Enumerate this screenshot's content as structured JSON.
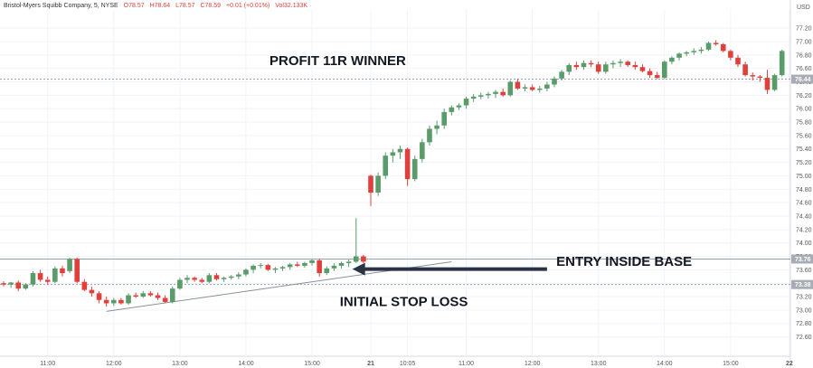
{
  "legend": {
    "symbol": "Bristol-Myers Squibb Company, 5, NYSE",
    "open": "O78.57",
    "high": "H78.64",
    "low": "L78.57",
    "close": "C78.59",
    "change": "+0.01 (+0.01%)",
    "volume": "Vol32.133K"
  },
  "colors": {
    "up": "#5a9b6a",
    "down": "#e0403c",
    "grid": "#f0f3fa",
    "axis_text": "#555555",
    "annotation_text": "#131722",
    "arrow": "#2a3244",
    "level_line": "#9aa0ab"
  },
  "chart_data": {
    "type": "candlestick",
    "title": "",
    "currency_label": "USD",
    "ylim": [
      72.5,
      77.35
    ],
    "y_ticks": [
      "77.20",
      "77.00",
      "76.80",
      "76.60",
      "76.40",
      "76.20",
      "76.00",
      "75.80",
      "75.60",
      "75.40",
      "75.20",
      "75.00",
      "74.80",
      "74.60",
      "74.40",
      "74.20",
      "74.00",
      "73.80",
      "73.60",
      "73.40",
      "73.20",
      "73.00",
      "72.80",
      "72.60"
    ],
    "x_tick_labels": [
      "11:00",
      "12:00",
      "13:00",
      "14:00",
      "15:00",
      "21",
      "10:05",
      "11:00",
      "12:00",
      "13:00",
      "14:00",
      "15:00",
      "22"
    ],
    "x_tick_bar_index": [
      6,
      15,
      24,
      33,
      42,
      50,
      55,
      63,
      72,
      81,
      90,
      99,
      107
    ],
    "levels": [
      {
        "price": 76.44,
        "label": "76.44",
        "style": "dotted"
      },
      {
        "price": 73.76,
        "label": "73.76",
        "style": "solid"
      },
      {
        "price": 73.38,
        "label": "73.38",
        "style": "dotted"
      }
    ],
    "trendline": {
      "from": [
        14,
        72.98
      ],
      "to": [
        61,
        73.72
      ]
    },
    "annotations": [
      {
        "text": "PROFIT 11R WINNER",
        "bar": 45.5,
        "price": 76.65
      },
      {
        "text": "ENTRY INSIDE BASE",
        "bar": 84.5,
        "price": 73.66
      },
      {
        "text": "INITIAL STOP LOSS",
        "bar": 54.5,
        "price": 73.06
      }
    ],
    "arrow": {
      "from_bar": 74,
      "to_bar": 47.5,
      "price": 73.61
    },
    "candles": [
      [
        73.4,
        73.43,
        73.35,
        73.38
      ],
      [
        73.38,
        73.42,
        73.33,
        73.41
      ],
      [
        73.41,
        73.44,
        73.28,
        73.32
      ],
      [
        73.32,
        73.4,
        73.3,
        73.38
      ],
      [
        73.38,
        73.58,
        73.35,
        73.55
      ],
      [
        73.55,
        73.6,
        73.42,
        73.45
      ],
      [
        73.45,
        73.5,
        73.38,
        73.42
      ],
      [
        73.42,
        73.65,
        73.4,
        73.62
      ],
      [
        73.62,
        73.66,
        73.5,
        73.55
      ],
      [
        73.58,
        73.78,
        73.55,
        73.76
      ],
      [
        73.76,
        73.78,
        73.4,
        73.42
      ],
      [
        73.42,
        73.46,
        73.28,
        73.3
      ],
      [
        73.3,
        73.35,
        73.2,
        73.25
      ],
      [
        73.25,
        73.28,
        73.1,
        73.15
      ],
      [
        73.15,
        73.2,
        73.05,
        73.1
      ],
      [
        73.1,
        73.18,
        73.06,
        73.15
      ],
      [
        73.15,
        73.18,
        73.08,
        73.1
      ],
      [
        73.1,
        73.25,
        73.08,
        73.22
      ],
      [
        73.22,
        73.26,
        73.18,
        73.2
      ],
      [
        73.2,
        73.28,
        73.18,
        73.25
      ],
      [
        73.25,
        73.28,
        73.2,
        73.22
      ],
      [
        73.22,
        73.26,
        73.15,
        73.18
      ],
      [
        73.18,
        73.22,
        73.1,
        73.12
      ],
      [
        73.12,
        73.35,
        73.1,
        73.32
      ],
      [
        73.32,
        73.48,
        73.3,
        73.45
      ],
      [
        73.45,
        73.52,
        73.4,
        73.48
      ],
      [
        73.48,
        73.5,
        73.42,
        73.45
      ],
      [
        73.45,
        73.48,
        73.4,
        73.42
      ],
      [
        73.42,
        73.55,
        73.4,
        73.52
      ],
      [
        73.52,
        73.55,
        73.44,
        73.46
      ],
      [
        73.46,
        73.5,
        73.42,
        73.48
      ],
      [
        73.48,
        73.52,
        73.45,
        73.5
      ],
      [
        73.5,
        73.56,
        73.46,
        73.53
      ],
      [
        73.53,
        73.62,
        73.5,
        73.6
      ],
      [
        73.6,
        73.68,
        73.55,
        73.66
      ],
      [
        73.66,
        73.7,
        73.62,
        73.67
      ],
      [
        73.67,
        73.69,
        73.58,
        73.6
      ],
      [
        73.6,
        73.64,
        73.55,
        73.62
      ],
      [
        73.62,
        73.66,
        73.58,
        73.64
      ],
      [
        73.64,
        73.7,
        73.6,
        73.68
      ],
      [
        73.68,
        73.72,
        73.64,
        73.66
      ],
      [
        73.66,
        73.72,
        73.63,
        73.7
      ],
      [
        73.7,
        73.76,
        73.66,
        73.74
      ],
      [
        73.74,
        73.76,
        73.5,
        73.55
      ],
      [
        73.55,
        73.65,
        73.52,
        73.62
      ],
      [
        73.62,
        73.7,
        73.58,
        73.66
      ],
      [
        73.66,
        73.72,
        73.62,
        73.7
      ],
      [
        73.7,
        73.75,
        73.64,
        73.72
      ],
      [
        73.72,
        74.37,
        73.7,
        73.8
      ],
      [
        73.8,
        73.82,
        73.7,
        73.72
      ],
      [
        75.0,
        75.02,
        74.55,
        74.75
      ],
      [
        74.75,
        75.05,
        74.7,
        75.0
      ],
      [
        75.0,
        75.35,
        74.95,
        75.3
      ],
      [
        75.3,
        75.4,
        75.2,
        75.35
      ],
      [
        75.35,
        75.45,
        75.25,
        75.4
      ],
      [
        75.4,
        75.42,
        74.85,
        74.95
      ],
      [
        74.95,
        75.3,
        74.92,
        75.25
      ],
      [
        75.25,
        75.55,
        75.2,
        75.5
      ],
      [
        75.5,
        75.75,
        75.45,
        75.7
      ],
      [
        75.7,
        75.82,
        75.62,
        75.75
      ],
      [
        75.75,
        76.0,
        75.7,
        75.95
      ],
      [
        75.95,
        76.05,
        75.9,
        76.02
      ],
      [
        76.02,
        76.08,
        75.98,
        76.05
      ],
      [
        76.05,
        76.18,
        76.0,
        76.15
      ],
      [
        76.15,
        76.22,
        76.1,
        76.18
      ],
      [
        76.18,
        76.24,
        76.14,
        76.2
      ],
      [
        76.2,
        76.25,
        76.15,
        76.22
      ],
      [
        76.22,
        76.28,
        76.16,
        76.25
      ],
      [
        76.25,
        76.3,
        76.18,
        76.2
      ],
      [
        76.2,
        76.42,
        76.18,
        76.4
      ],
      [
        76.4,
        76.44,
        76.28,
        76.3
      ],
      [
        76.3,
        76.36,
        76.26,
        76.32
      ],
      [
        76.32,
        76.36,
        76.26,
        76.28
      ],
      [
        76.28,
        76.34,
        76.24,
        76.3
      ],
      [
        76.3,
        76.4,
        76.26,
        76.36
      ],
      [
        76.36,
        76.48,
        76.32,
        76.45
      ],
      [
        76.45,
        76.58,
        76.42,
        76.55
      ],
      [
        76.55,
        76.68,
        76.5,
        76.65
      ],
      [
        76.65,
        76.7,
        76.58,
        76.62
      ],
      [
        76.62,
        76.72,
        76.58,
        76.68
      ],
      [
        76.68,
        76.72,
        76.62,
        76.66
      ],
      [
        76.66,
        76.7,
        76.52,
        76.55
      ],
      [
        76.55,
        76.7,
        76.52,
        76.66
      ],
      [
        76.66,
        76.72,
        76.6,
        76.68
      ],
      [
        76.68,
        76.74,
        76.62,
        76.7
      ],
      [
        76.7,
        76.72,
        76.62,
        76.65
      ],
      [
        76.65,
        76.7,
        76.58,
        76.62
      ],
      [
        76.62,
        76.66,
        76.54,
        76.56
      ],
      [
        76.56,
        76.6,
        76.46,
        76.5
      ],
      [
        76.5,
        76.55,
        76.44,
        76.46
      ],
      [
        76.46,
        76.72,
        76.44,
        76.7
      ],
      [
        76.7,
        76.78,
        76.66,
        76.76
      ],
      [
        76.76,
        76.84,
        76.72,
        76.82
      ],
      [
        76.82,
        76.86,
        76.78,
        76.84
      ],
      [
        76.84,
        76.9,
        76.8,
        76.86
      ],
      [
        76.86,
        76.92,
        76.82,
        76.88
      ],
      [
        76.88,
        77.0,
        76.86,
        76.98
      ],
      [
        76.98,
        77.02,
        76.94,
        76.96
      ],
      [
        76.96,
        76.98,
        76.84,
        76.86
      ],
      [
        76.86,
        76.88,
        76.72,
        76.76
      ],
      [
        76.76,
        76.8,
        76.62,
        76.66
      ],
      [
        76.66,
        76.7,
        76.48,
        76.5
      ],
      [
        76.5,
        76.54,
        76.42,
        76.48
      ],
      [
        76.48,
        76.5,
        76.4,
        76.46
      ],
      [
        76.46,
        76.58,
        76.22,
        76.28
      ],
      [
        76.28,
        76.52,
        76.26,
        76.5
      ],
      [
        76.5,
        76.88,
        76.48,
        76.86
      ]
    ],
    "labels": {
      "legend_prefix_note": "",
      "grid": true
    }
  }
}
